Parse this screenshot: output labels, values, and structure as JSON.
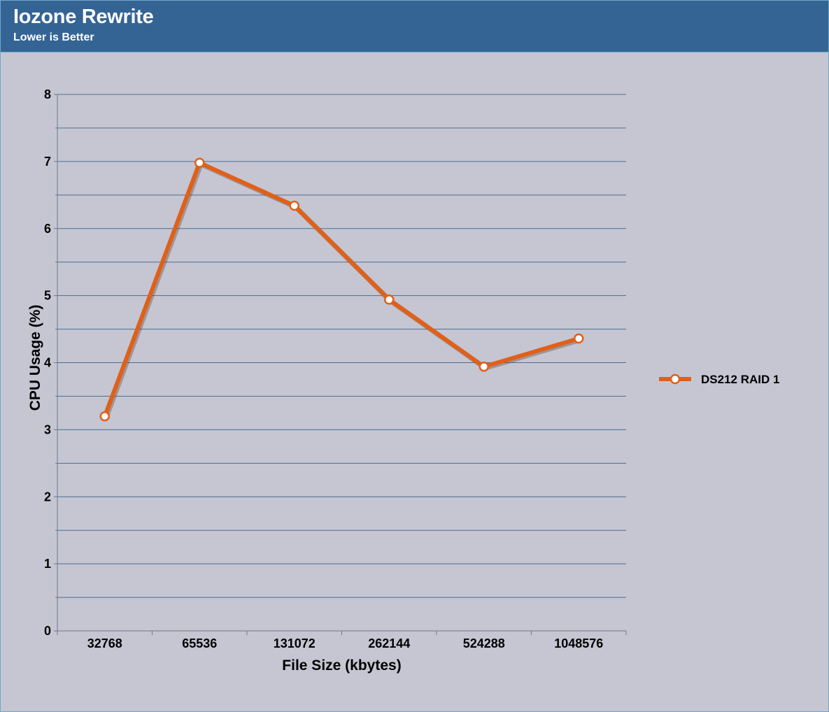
{
  "header": {
    "title": "Iozone Rewrite",
    "subtitle": "Lower is Better"
  },
  "chart_data": {
    "type": "line",
    "title": "Iozone Rewrite",
    "subtitle": "Lower is Better",
    "xlabel": "File Size (kbytes)",
    "ylabel": "CPU Usage (%)",
    "categories": [
      "32768",
      "65536",
      "131072",
      "262144",
      "524288",
      "1048576"
    ],
    "series": [
      {
        "name": "DS212 RAID 1",
        "values": [
          3.2,
          6.98,
          6.34,
          4.94,
          3.94,
          4.36
        ],
        "color": "#e0601a"
      }
    ],
    "ylim": [
      0,
      8
    ],
    "yticks": [
      0,
      1,
      2,
      3,
      4,
      5,
      6,
      7,
      8
    ],
    "grid": true,
    "legend": "right",
    "colors": {
      "header_bg": "#346494",
      "plot_bg": "#c5c6d2",
      "gridline": "#4a6d94"
    }
  }
}
